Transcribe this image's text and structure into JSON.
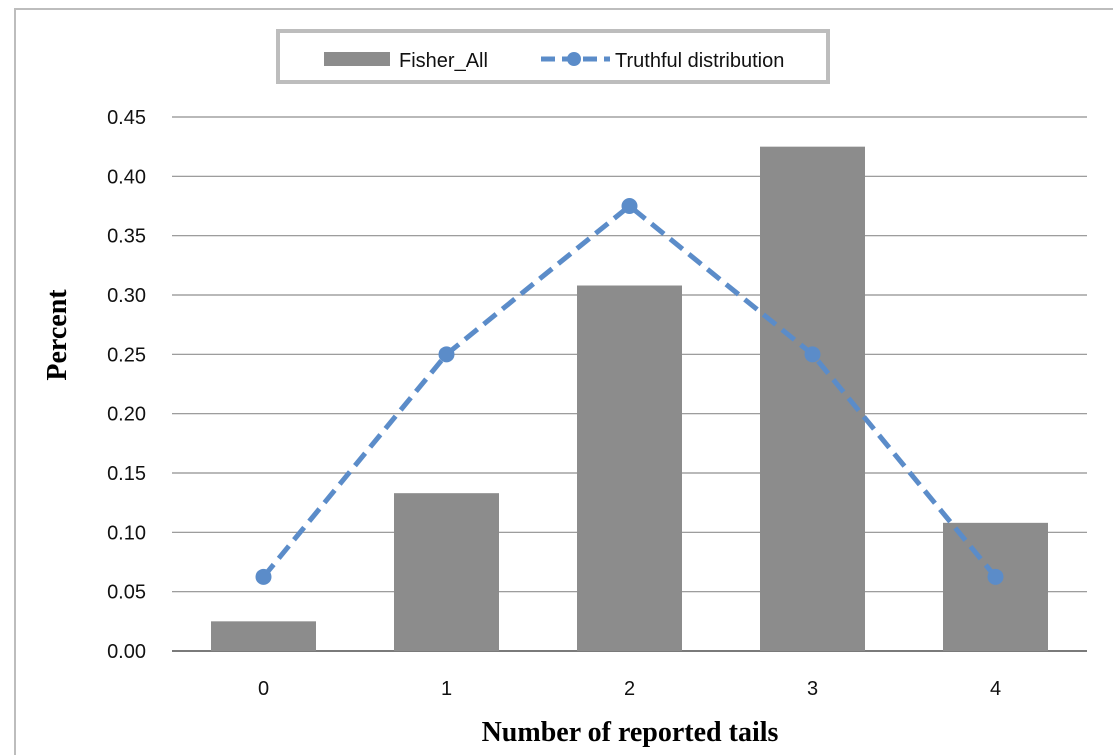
{
  "chart_data": {
    "type": "bar",
    "categories": [
      "0",
      "1",
      "2",
      "3",
      "4"
    ],
    "series": [
      {
        "name": "Fisher_All",
        "kind": "bar",
        "color": "#8c8c8c",
        "values": [
          0.025,
          0.133,
          0.308,
          0.425,
          0.108
        ]
      },
      {
        "name": "Truthful distribution",
        "kind": "line",
        "style": "dashed",
        "marker": "circle",
        "color": "#5b8cc9",
        "values": [
          0.0625,
          0.25,
          0.375,
          0.25,
          0.0625
        ]
      }
    ],
    "xlabel": "Number of reported tails",
    "ylabel": "Percent",
    "ylim": [
      0,
      0.45
    ],
    "yticks": [
      "0.00",
      "0.05",
      "0.10",
      "0.15",
      "0.20",
      "0.25",
      "0.30",
      "0.35",
      "0.40",
      "0.45"
    ],
    "grid": "horizontal",
    "legend_position": "top-center"
  }
}
